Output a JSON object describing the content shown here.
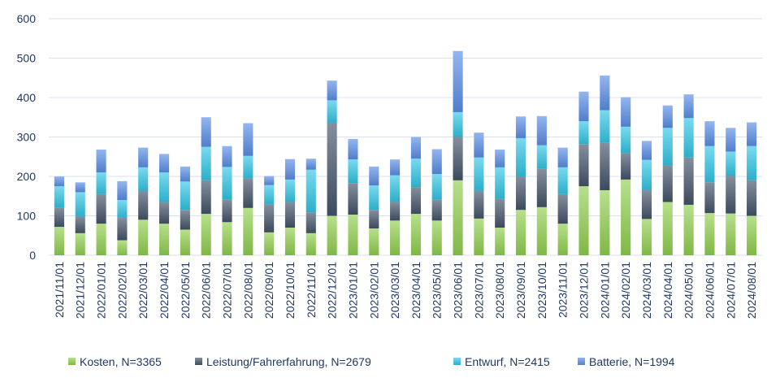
{
  "chart_data": {
    "type": "bar",
    "stacked": true,
    "title": "",
    "xlabel": "",
    "ylabel": "",
    "ylim": [
      0,
      600
    ],
    "yticks": [
      0,
      100,
      200,
      300,
      400,
      500,
      600
    ],
    "grid": true,
    "legend_position": "bottom",
    "categories": [
      "2021/11/01",
      "2021/12/01",
      "2022/01/01",
      "2022/02/01",
      "2022/03/01",
      "2022/04/01",
      "2022/05/01",
      "2022/06/01",
      "2022/07/01",
      "2022/08/01",
      "2022/09/01",
      "2022/10/01",
      "2022/11/01",
      "2022/12/01",
      "2023/01/01",
      "2023/02/01",
      "2023/03/01",
      "2023/04/01",
      "2023/05/01",
      "2023/06/01",
      "2023/07/01",
      "2023/08/01",
      "2023/09/01",
      "2023/10/01",
      "2023/11/01",
      "2023/12/01",
      "2024/01/01",
      "2024/02/01",
      "2024/03/01",
      "2024/04/01",
      "2024/05/01",
      "2024/06/01",
      "2024/07/01",
      "2024/08/01"
    ],
    "series": [
      {
        "name": "Kosten, N=3365",
        "color": "#92d050",
        "values": [
          72,
          56,
          80,
          38,
          90,
          80,
          65,
          105,
          84,
          120,
          58,
          70,
          56,
          100,
          103,
          68,
          88,
          105,
          88,
          190,
          93,
          70,
          115,
          122,
          80,
          175,
          165,
          192,
          92,
          135,
          128,
          107,
          106,
          100
        ]
      },
      {
        "name": "Leistung/Fahrerfahrung, N=2679",
        "color": "#44546a",
        "values": [
          48,
          42,
          75,
          57,
          73,
          55,
          50,
          85,
          58,
          75,
          70,
          65,
          53,
          235,
          80,
          47,
          47,
          68,
          53,
          110,
          70,
          73,
          85,
          97,
          75,
          107,
          120,
          67,
          73,
          93,
          120,
          78,
          95,
          90
        ]
      },
      {
        "name": "Entwurf, N=2415",
        "color": "#33c6e6",
        "values": [
          55,
          62,
          55,
          45,
          60,
          75,
          72,
          85,
          82,
          57,
          50,
          57,
          108,
          58,
          60,
          62,
          68,
          72,
          65,
          63,
          85,
          80,
          97,
          60,
          68,
          58,
          83,
          67,
          77,
          95,
          100,
          92,
          62,
          87
        ]
      },
      {
        "name": "Batterie, N=1994",
        "color": "#5b8ee6",
        "values": [
          25,
          25,
          58,
          48,
          50,
          47,
          38,
          75,
          53,
          83,
          23,
          52,
          28,
          50,
          52,
          48,
          40,
          55,
          63,
          155,
          63,
          45,
          55,
          74,
          50,
          75,
          88,
          75,
          48,
          57,
          60,
          63,
          60,
          60
        ]
      }
    ]
  }
}
